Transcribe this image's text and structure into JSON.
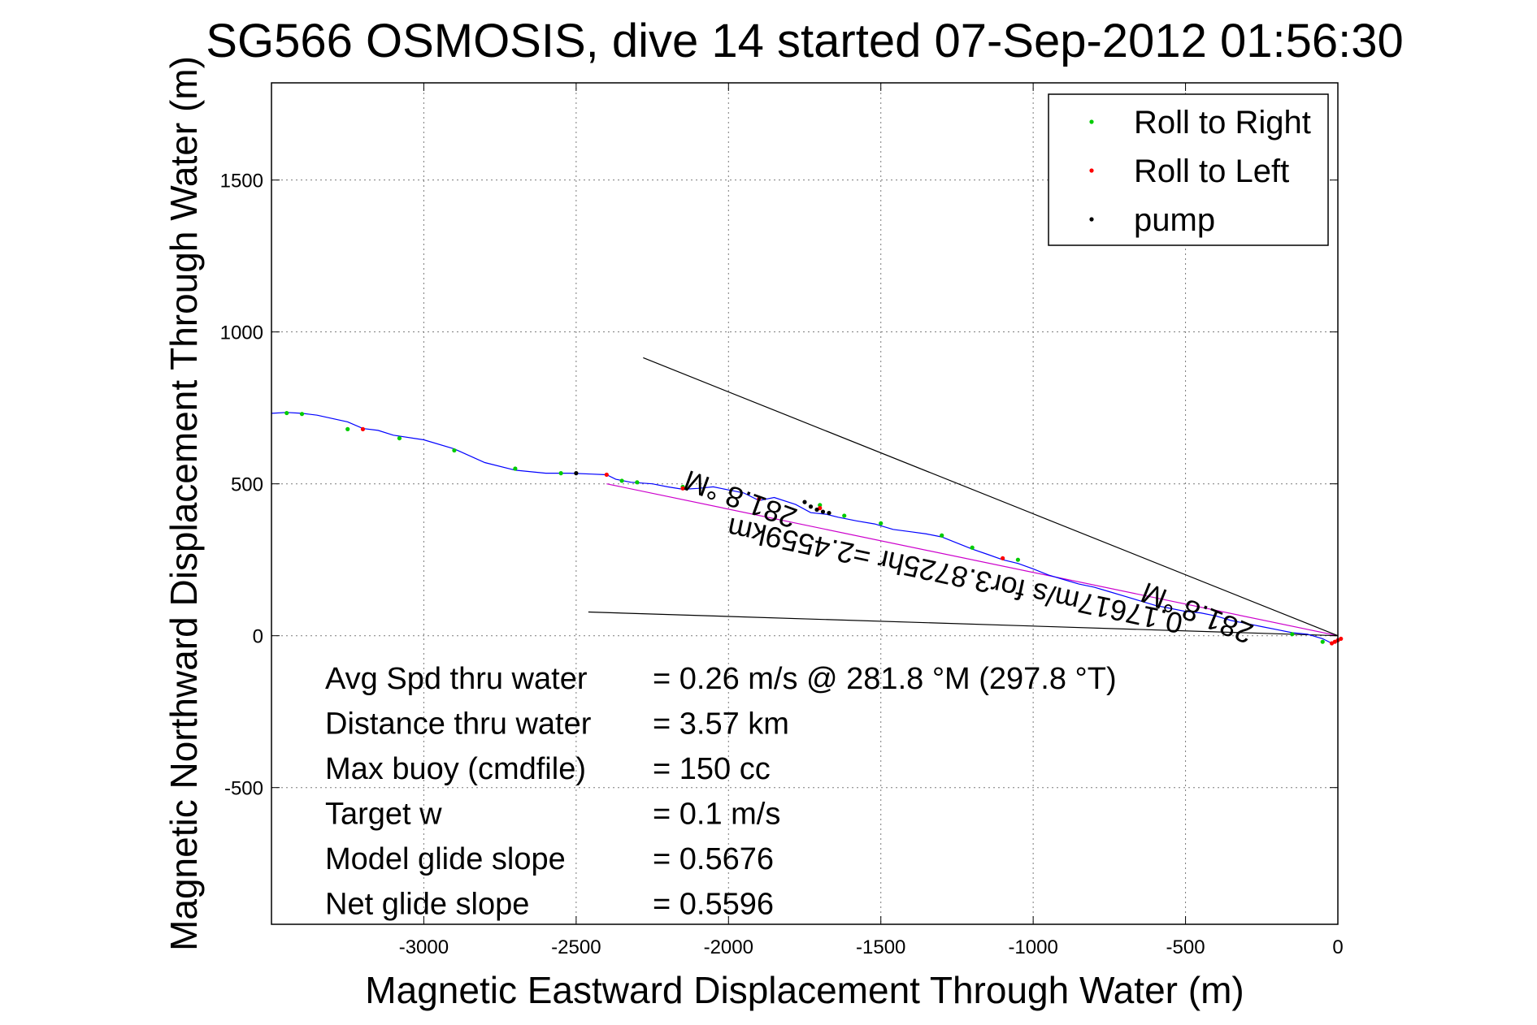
{
  "chart_data": {
    "type": "line",
    "title": "SG566 OSMOSIS, dive 14 started 07-Sep-2012 01:56:30",
    "xlabel": "Magnetic Eastward Displacement Through Water (m)",
    "ylabel": "Magnetic Northward Displacement Through Water (m)",
    "xlim": [
      -3500,
      0
    ],
    "ylim": [
      -950,
      1820
    ],
    "xticks": [
      -3000,
      -2500,
      -2000,
      -1500,
      -1000,
      -500,
      0
    ],
    "yticks": [
      -500,
      0,
      500,
      1000,
      1500
    ],
    "grid": true,
    "legend": {
      "position": "top-right",
      "entries": [
        {
          "name": "Roll to Right",
          "color": "#00cc00"
        },
        {
          "name": "Roll to Left",
          "color": "#ff0000"
        },
        {
          "name": "pump",
          "color": "#000000"
        }
      ]
    },
    "series": [
      {
        "name": "track",
        "color": "#0000ff",
        "x": [
          -3500,
          -3450,
          -3400,
          -3350,
          -3250,
          -3200,
          -3150,
          -3100,
          -3000,
          -2900,
          -2800,
          -2700,
          -2600,
          -2520,
          -2450,
          -2400,
          -2370,
          -2320,
          -2250,
          -2200,
          -2150,
          -2100,
          -2050,
          -2000,
          -1950,
          -1900,
          -1850,
          -1780,
          -1730,
          -1680,
          -1640,
          -1580,
          -1520,
          -1460,
          -1400,
          -1350,
          -1300,
          -1250,
          -1200,
          -1150,
          -1100,
          -1050,
          -1000,
          -950,
          -900,
          -850,
          -800,
          -750,
          -700,
          -650,
          -600,
          -550,
          -500,
          -450,
          -400,
          -350,
          -300,
          -250,
          -200,
          -150,
          -100,
          -50,
          -20,
          0
        ],
        "y": [
          732,
          735,
          732,
          726,
          704,
          682,
          676,
          660,
          645,
          615,
          570,
          545,
          535,
          535,
          532,
          530,
          515,
          505,
          500,
          490,
          482,
          485,
          490,
          480,
          470,
          445,
          455,
          432,
          405,
          400,
          390,
          378,
          368,
          350,
          342,
          335,
          325,
          305,
          285,
          268,
          250,
          238,
          220,
          200,
          185,
          170,
          160,
          145,
          130,
          115,
          100,
          90,
          80,
          75,
          65,
          50,
          40,
          30,
          20,
          10,
          5,
          -10,
          -25,
          -20
        ]
      },
      {
        "name": "Roll to Right",
        "color": "#00cc00",
        "x": [
          -3450,
          -3400,
          -3250,
          -3080,
          -2900,
          -2700,
          -2550,
          -2350,
          -2300,
          -2150,
          -1700,
          -1620,
          -1500,
          -1300,
          -1200,
          -1050,
          -150,
          -50
        ],
        "y": [
          733,
          730,
          680,
          650,
          610,
          550,
          535,
          510,
          505,
          490,
          430,
          395,
          370,
          330,
          290,
          250,
          5,
          -20
        ]
      },
      {
        "name": "Roll to Left",
        "color": "#ff0000",
        "x": [
          -3200,
          -2400,
          -2150,
          -1900,
          -1700,
          -1100,
          0,
          -10,
          -20,
          10
        ],
        "y": [
          680,
          530,
          485,
          450,
          420,
          255,
          -15,
          -20,
          -25,
          -10
        ]
      },
      {
        "name": "pump",
        "color": "#000000",
        "x": [
          -2500,
          -1750,
          -1730,
          -1710,
          -1690,
          -1670
        ],
        "y": [
          535,
          440,
          425,
          415,
          408,
          404
        ]
      }
    ],
    "reference_lines": [
      {
        "name": "magenta",
        "color": "#cc00cc",
        "x": [
          -2400,
          0
        ],
        "y": [
          500,
          0
        ]
      },
      {
        "name": "upper",
        "color": "#000000",
        "x": [
          -2280,
          0
        ],
        "y": [
          915,
          0
        ]
      },
      {
        "name": "lower",
        "color": "#000000",
        "x": [
          -2460,
          0
        ],
        "y": [
          78,
          0
        ]
      }
    ],
    "annotations": [
      {
        "text": "281.8 °M",
        "x": -1950,
        "y": 480,
        "rotation_deg": -160
      },
      {
        "text": "0.17617m/s for3.8725hr =2.4559km",
        "x": -1250,
        "y": 230,
        "rotation_deg": -168
      },
      {
        "text": "281.8 °M",
        "x": -450,
        "y": 105,
        "rotation_deg": -158
      }
    ],
    "stats": [
      {
        "label": "Avg Spd thru water",
        "value": "=  0.26 m/s @ 281.8 °M (297.8 °T)"
      },
      {
        "label": "Distance thru water",
        "value": "=  3.57 km"
      },
      {
        "label": "Max buoy (cmdfile)",
        "value": "= 150 cc"
      },
      {
        "label": "Target w",
        "value": "= 0.1 m/s"
      },
      {
        "label": "Model glide slope",
        "value": "= 0.5676"
      },
      {
        "label": "Net glide slope",
        "value": "= 0.5596"
      }
    ]
  }
}
